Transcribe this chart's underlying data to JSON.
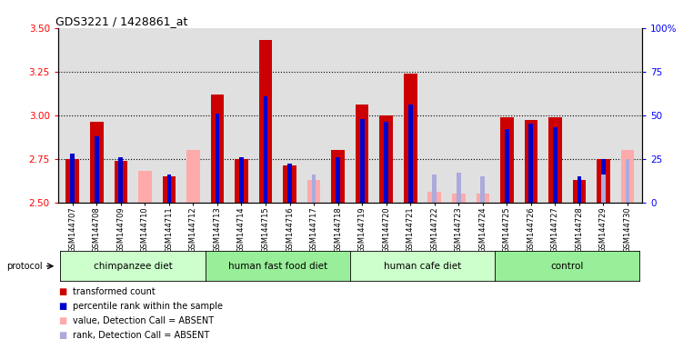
{
  "title": "GDS3221 / 1428861_at",
  "samples": [
    "GSM144707",
    "GSM144708",
    "GSM144709",
    "GSM144710",
    "GSM144711",
    "GSM144712",
    "GSM144713",
    "GSM144714",
    "GSM144715",
    "GSM144716",
    "GSM144717",
    "GSM144718",
    "GSM144719",
    "GSM144720",
    "GSM144721",
    "GSM144722",
    "GSM144723",
    "GSM144724",
    "GSM144725",
    "GSM144726",
    "GSM144727",
    "GSM144728",
    "GSM144729",
    "GSM144730"
  ],
  "red_values": [
    2.75,
    2.96,
    2.74,
    null,
    2.65,
    null,
    3.12,
    2.75,
    3.43,
    2.71,
    2.63,
    2.8,
    3.06,
    3.0,
    3.24,
    null,
    null,
    null,
    2.99,
    2.97,
    2.99,
    2.63,
    2.75,
    null
  ],
  "blue_values": [
    2.78,
    2.88,
    2.76,
    null,
    2.66,
    null,
    3.01,
    2.76,
    3.11,
    2.72,
    null,
    2.76,
    2.98,
    2.96,
    3.06,
    null,
    2.67,
    null,
    2.92,
    2.95,
    2.93,
    2.65,
    2.75,
    null
  ],
  "pink_values": [
    null,
    null,
    null,
    2.68,
    null,
    2.8,
    null,
    null,
    null,
    null,
    2.63,
    null,
    null,
    null,
    null,
    2.56,
    2.55,
    2.55,
    null,
    null,
    null,
    null,
    null,
    2.8
  ],
  "lightblue_values": [
    null,
    null,
    null,
    null,
    null,
    null,
    null,
    null,
    null,
    null,
    2.66,
    null,
    null,
    null,
    null,
    2.66,
    2.67,
    2.65,
    null,
    null,
    null,
    null,
    2.66,
    2.75
  ],
  "groups": [
    {
      "label": "chimpanzee diet",
      "start": 0,
      "end": 6
    },
    {
      "label": "human fast food diet",
      "start": 6,
      "end": 12
    },
    {
      "label": "human cafe diet",
      "start": 12,
      "end": 18
    },
    {
      "label": "control",
      "start": 18,
      "end": 24
    }
  ],
  "group_colors": [
    "#ccffcc",
    "#99ee99",
    "#ccffcc",
    "#99ee99"
  ],
  "ylim_left": [
    2.5,
    3.5
  ],
  "ylim_right": [
    0,
    100
  ],
  "yticks_left": [
    2.5,
    2.75,
    3.0,
    3.25,
    3.5
  ],
  "yticks_right": [
    0,
    25,
    50,
    75,
    100
  ],
  "ytick_labels_right": [
    "0",
    "25",
    "50",
    "75",
    "100%"
  ],
  "hlines": [
    2.75,
    3.0,
    3.25
  ],
  "red_color": "#cc0000",
  "blue_color": "#0000cc",
  "pink_color": "#ffaaaa",
  "lightblue_color": "#aaaadd",
  "legend": [
    {
      "color": "#cc0000",
      "label": "transformed count"
    },
    {
      "color": "#0000cc",
      "label": "percentile rank within the sample"
    },
    {
      "color": "#ffaaaa",
      "label": "value, Detection Call = ABSENT"
    },
    {
      "color": "#aaaadd",
      "label": "rank, Detection Call = ABSENT"
    }
  ],
  "bg_color": "#e0e0e0"
}
